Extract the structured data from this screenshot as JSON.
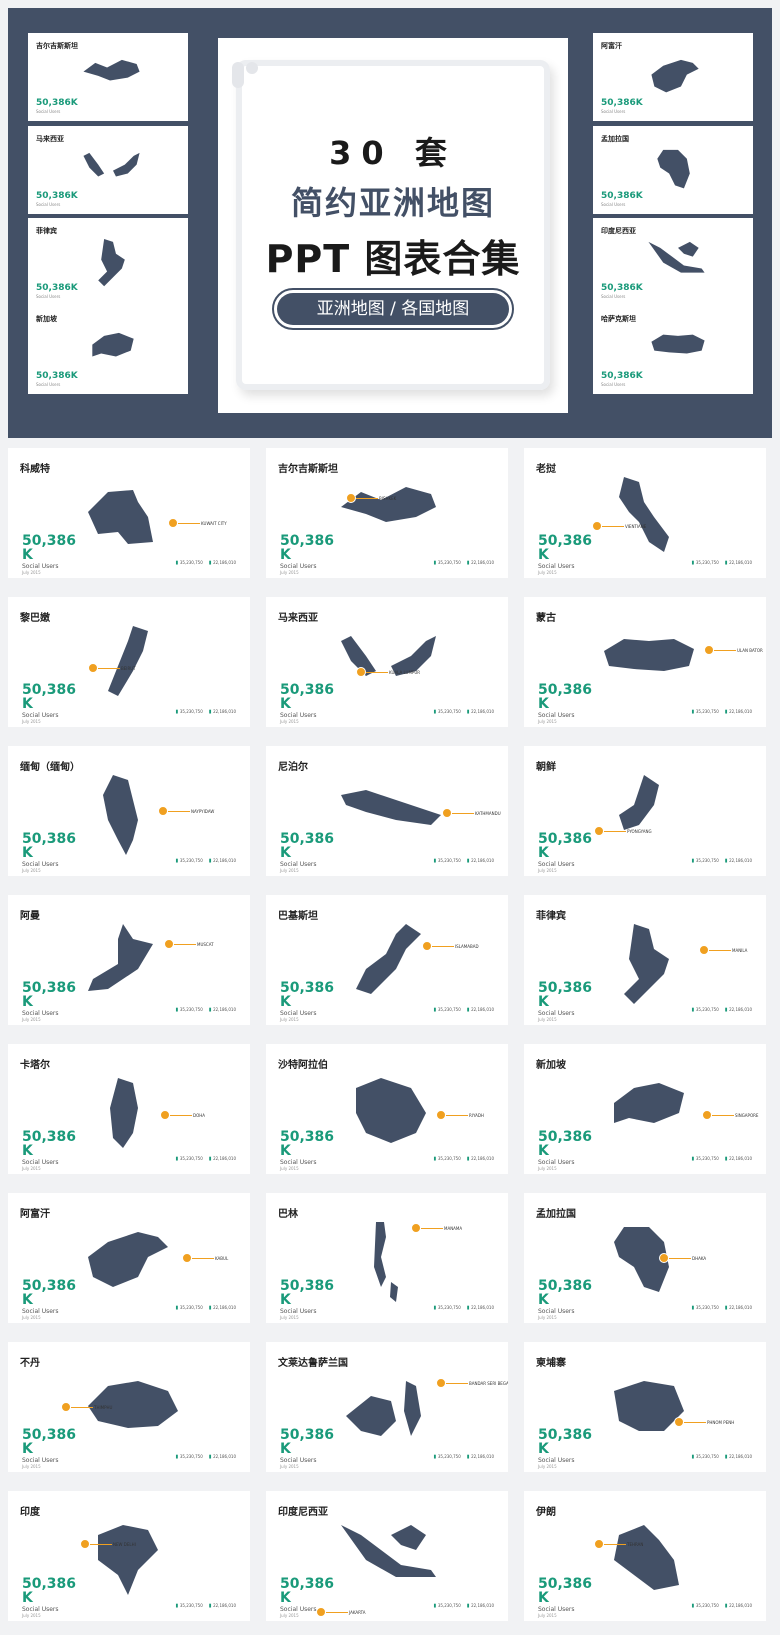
{
  "hero": {
    "title_line1": "30 套",
    "title_line2": "简约亚洲地图",
    "title_line3": "PPT 图表合集",
    "pill": "亚洲地图 / 各国地图",
    "mini_cards": [
      {
        "title": "吉尔吉斯斯坦",
        "value": "50,386K"
      },
      {
        "title": "马来西亚",
        "value": "50,386K"
      },
      {
        "title": "菲律宾",
        "value": "50,386K"
      },
      {
        "title": "新加坡",
        "value": "50,386K"
      },
      {
        "title": "阿富汗",
        "value": "50,386K"
      },
      {
        "title": "孟加拉国",
        "value": "50,386K"
      },
      {
        "title": "印度尼西亚",
        "value": "50,386K"
      },
      {
        "title": "哈萨克斯坦",
        "value": "50,386K"
      }
    ]
  },
  "card_common": {
    "value": "50,386 K",
    "subtitle": "Social Users",
    "date": "July 2015",
    "stat1": "35,230,750",
    "stat2": "22,186,010"
  },
  "cards": [
    {
      "title": "科威特",
      "city": "KUWAIT CITY"
    },
    {
      "title": "吉尔吉斯斯坦",
      "city": "BISHKEK"
    },
    {
      "title": "老挝",
      "city": "VIENTIANE"
    },
    {
      "title": "黎巴嫩",
      "city": "BEIRUT"
    },
    {
      "title": "马来西亚",
      "city": "KUALA LUMPUR"
    },
    {
      "title": "蒙古",
      "city": "ULAN BATOR"
    },
    {
      "title": "缅甸（缅甸）",
      "city": "NAYPYIDAW"
    },
    {
      "title": "尼泊尔",
      "city": "KATHMANDU"
    },
    {
      "title": "朝鲜",
      "city": "PYONGYANG"
    },
    {
      "title": "阿曼",
      "city": "MUSCAT"
    },
    {
      "title": "巴基斯坦",
      "city": "ISLAMABAD"
    },
    {
      "title": "菲律宾",
      "city": "MANILA"
    },
    {
      "title": "卡塔尔",
      "city": "DOHA"
    },
    {
      "title": "沙特阿拉伯",
      "city": "RIYADH"
    },
    {
      "title": "新加坡",
      "city": "SINGAPORE"
    },
    {
      "title": "阿富汗",
      "city": "KABUL"
    },
    {
      "title": "巴林",
      "city": "MANAMA"
    },
    {
      "title": "孟加拉国",
      "city": "DHAKA"
    },
    {
      "title": "不丹",
      "city": "THIMPHU"
    },
    {
      "title": "文莱达鲁萨兰国",
      "city": "BANDAR SERI BEGAWAN"
    },
    {
      "title": "柬埔寨",
      "city": "PHNOM PENH"
    },
    {
      "title": "印度",
      "city": "NEW DELHI"
    },
    {
      "title": "印度尼西亚",
      "city": "JAKARTA"
    },
    {
      "title": "伊朗",
      "city": "TEHRAN"
    }
  ],
  "colors": {
    "navy": "#435066",
    "green": "#1a9a7a",
    "orange": "#f0a020"
  }
}
